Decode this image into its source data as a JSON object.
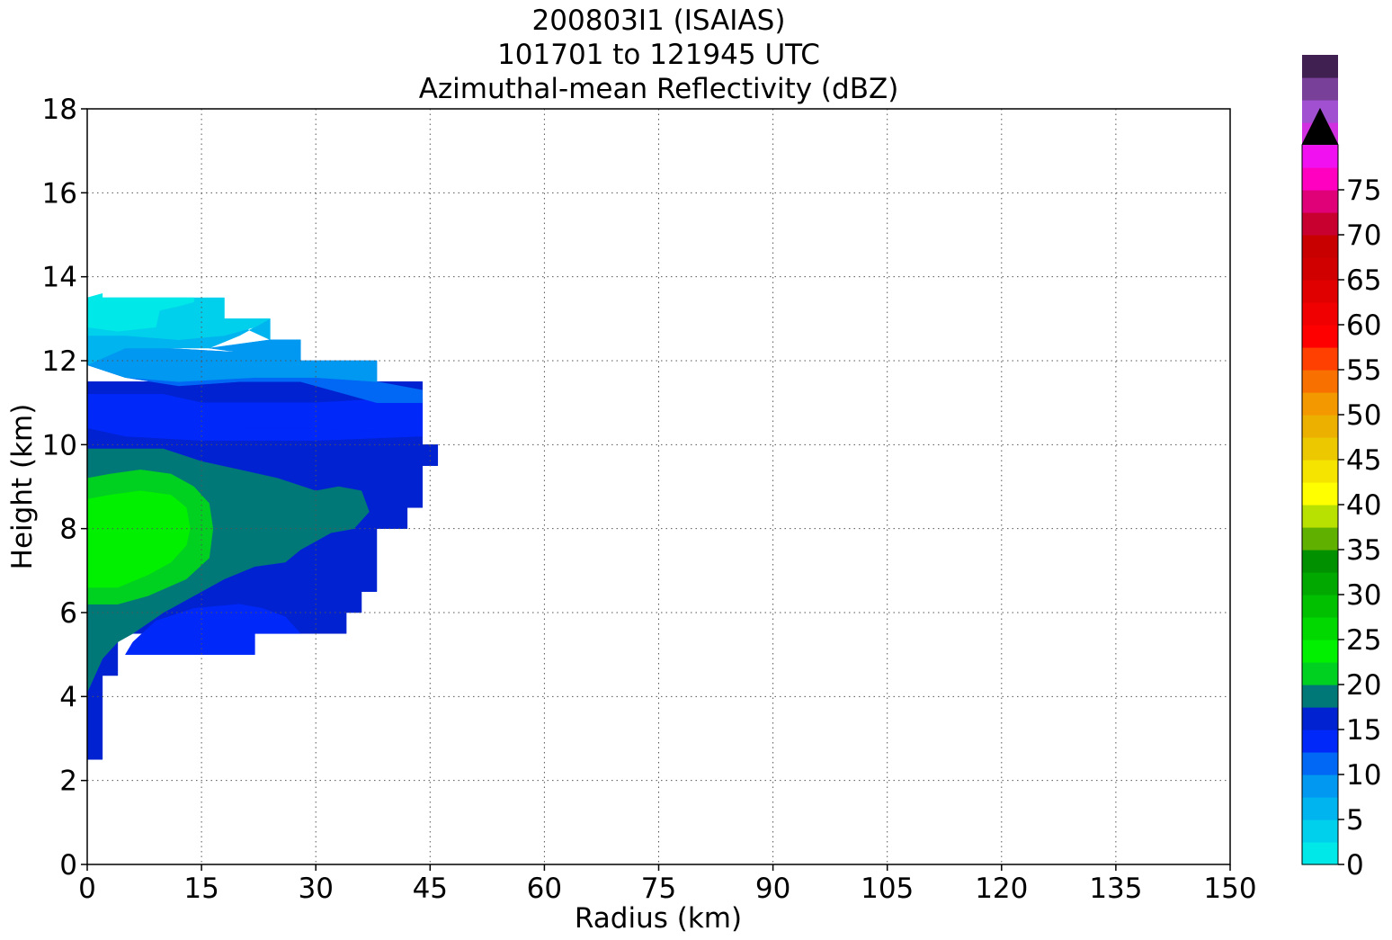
{
  "chart_data": {
    "type": "heatmap",
    "title_lines": [
      "200803I1 (ISAIAS)",
      "101701 to 121945 UTC",
      "Azimuthal-mean Reflectivity (dBZ)"
    ],
    "xlabel": "Radius (km)",
    "ylabel": "Height (km)",
    "xlim": [
      0,
      150
    ],
    "ylim": [
      0,
      18
    ],
    "xticks": [
      0,
      15,
      30,
      45,
      60,
      75,
      90,
      105,
      120,
      135,
      150
    ],
    "yticks": [
      0,
      2,
      4,
      6,
      8,
      10,
      12,
      14,
      16,
      18
    ],
    "grid": true,
    "colorbar": {
      "min": 0,
      "max": 80,
      "step": 2.5,
      "extend": "max",
      "ticks": [
        0,
        5,
        10,
        15,
        20,
        25,
        30,
        35,
        40,
        45,
        50,
        55,
        60,
        65,
        70,
        75
      ],
      "colors": [
        "#00e8e8",
        "#00d0ec",
        "#00b4f0",
        "#0098f0",
        "#0068f4",
        "#0028f8",
        "#0022d0",
        "#007878",
        "#00d020",
        "#00f000",
        "#00d800",
        "#00c000",
        "#00a800",
        "#009000",
        "#60b000",
        "#b8e000",
        "#ffff00",
        "#f4e400",
        "#ecc800",
        "#ecb000",
        "#f49800",
        "#f87000",
        "#ff4000",
        "#ff0000",
        "#f00000",
        "#e00000",
        "#d00000",
        "#c80000",
        "#c80030",
        "#e00078",
        "#ff00c0",
        "#f010f0",
        "#d030e0",
        "#a050d0",
        "#784098",
        "#402050"
      ],
      "over_color": "#000000"
    },
    "contour_regions": [
      {
        "level": 15,
        "color": "#0022d0",
        "polygon": [
          [
            0,
            2.5
          ],
          [
            2,
            2.5
          ],
          [
            2,
            4.5
          ],
          [
            4,
            4.5
          ],
          [
            4,
            5.5
          ],
          [
            34,
            5.5
          ],
          [
            34,
            6
          ],
          [
            36,
            6
          ],
          [
            36,
            6.5
          ],
          [
            38,
            6.5
          ],
          [
            38,
            8
          ],
          [
            42,
            8
          ],
          [
            42,
            8.5
          ],
          [
            44,
            8.5
          ],
          [
            44,
            9.5
          ],
          [
            46,
            9.5
          ],
          [
            46,
            10
          ],
          [
            44,
            10
          ],
          [
            44,
            11.5
          ],
          [
            0,
            11.5
          ]
        ]
      },
      {
        "level": 12.5,
        "color": "#0028f8",
        "polygon": [
          [
            6,
            5.3
          ],
          [
            9,
            5.8
          ],
          [
            14,
            6.1
          ],
          [
            20,
            6.2
          ],
          [
            23,
            6.1
          ],
          [
            26,
            5.9
          ],
          [
            28,
            5.5
          ],
          [
            22,
            5.5
          ],
          [
            22,
            5
          ],
          [
            5,
            5
          ]
        ]
      },
      {
        "level": 12.5,
        "color": "#0028f8",
        "polygon": [
          [
            0,
            11.2
          ],
          [
            10,
            11.2
          ],
          [
            15,
            11
          ],
          [
            30,
            11
          ],
          [
            40,
            11.1
          ],
          [
            44,
            11.1
          ],
          [
            44,
            10.6
          ],
          [
            38,
            10.3
          ],
          [
            30,
            10.4
          ],
          [
            20,
            10.4
          ],
          [
            12,
            10.6
          ],
          [
            5,
            10.7
          ],
          [
            0,
            10.9
          ]
        ]
      },
      {
        "level": 17.5,
        "color": "#007878",
        "polygon": [
          [
            0,
            4.1
          ],
          [
            2,
            4.9
          ],
          [
            4,
            5.3
          ],
          [
            6,
            5.5
          ],
          [
            10,
            6
          ],
          [
            15,
            6.5
          ],
          [
            18,
            6.8
          ],
          [
            22,
            7.1
          ],
          [
            26,
            7.2
          ],
          [
            28,
            7.5
          ],
          [
            30,
            7.7
          ],
          [
            32,
            7.9
          ],
          [
            35,
            8
          ],
          [
            37,
            8.4
          ],
          [
            36,
            8.9
          ],
          [
            33,
            9
          ],
          [
            30,
            8.9
          ],
          [
            25,
            9.2
          ],
          [
            20,
            9.4
          ],
          [
            15,
            9.6
          ],
          [
            10,
            9.9
          ],
          [
            0,
            9.9
          ]
        ]
      },
      {
        "level": 20,
        "color": "#00d020",
        "polygon": [
          [
            0,
            6.2
          ],
          [
            4,
            6.2
          ],
          [
            8,
            6.4
          ],
          [
            13,
            6.8
          ],
          [
            16,
            7.3
          ],
          [
            16.5,
            8
          ],
          [
            16,
            8.6
          ],
          [
            14,
            9
          ],
          [
            11,
            9.3
          ],
          [
            7,
            9.4
          ],
          [
            3,
            9.3
          ],
          [
            0,
            9.2
          ]
        ]
      },
      {
        "level": 22.5,
        "color": "#00f000",
        "polygon": [
          [
            0,
            6.6
          ],
          [
            4,
            6.6
          ],
          [
            8,
            6.9
          ],
          [
            11,
            7.2
          ],
          [
            13,
            7.6
          ],
          [
            13.5,
            8
          ],
          [
            13,
            8.5
          ],
          [
            11,
            8.8
          ],
          [
            7,
            8.9
          ],
          [
            3,
            8.8
          ],
          [
            0,
            8.7
          ]
        ]
      },
      {
        "level": 10,
        "color": "#0068f4",
        "polygon": [
          [
            0,
            11.9
          ],
          [
            5,
            11.6
          ],
          [
            12,
            11.4
          ],
          [
            20,
            11.5
          ],
          [
            28,
            11.5
          ],
          [
            34,
            11.2
          ],
          [
            38,
            11
          ],
          [
            44,
            11
          ],
          [
            44,
            11.3
          ],
          [
            38,
            11.5
          ],
          [
            38,
            12
          ],
          [
            28,
            12
          ],
          [
            20,
            12.2
          ],
          [
            10,
            12.3
          ],
          [
            0,
            12.3
          ]
        ]
      },
      {
        "level": 7.5,
        "color": "#0098f0",
        "polygon": [
          [
            0,
            12.3
          ],
          [
            10,
            12.3
          ],
          [
            20,
            12.2
          ],
          [
            28,
            12
          ],
          [
            38,
            12
          ],
          [
            38,
            11.5
          ],
          [
            30,
            11.6
          ],
          [
            22,
            11.6
          ],
          [
            12,
            11.5
          ],
          [
            5,
            11.6
          ],
          [
            0,
            11.9
          ]
        ]
      },
      {
        "level": 7.5,
        "color": "#0098f0",
        "polygon": [
          [
            24,
            12.5
          ],
          [
            28,
            12.5
          ],
          [
            28,
            12
          ],
          [
            20,
            12.2
          ],
          [
            16,
            12.3
          ]
        ]
      },
      {
        "level": 5,
        "color": "#00b4f0",
        "polygon": [
          [
            0,
            11.9
          ],
          [
            5,
            12.3
          ],
          [
            10,
            12.3
          ],
          [
            16,
            12.3
          ],
          [
            20,
            12.6
          ],
          [
            24,
            13
          ],
          [
            24,
            12.5
          ],
          [
            18,
            13
          ],
          [
            12,
            12.9
          ],
          [
            5,
            12.9
          ],
          [
            0,
            12.7
          ]
        ]
      },
      {
        "level": 2.5,
        "color": "#00d0ec",
        "polygon": [
          [
            0,
            13.3
          ],
          [
            2,
            13.4
          ],
          [
            2,
            13.5
          ],
          [
            18,
            13.5
          ],
          [
            18,
            13
          ],
          [
            24,
            13
          ],
          [
            22,
            12.8
          ],
          [
            18,
            12.6
          ],
          [
            12,
            12.5
          ],
          [
            5,
            12.6
          ],
          [
            0,
            12.6
          ]
        ]
      },
      {
        "level": 0,
        "color": "#00e8e8",
        "polygon": [
          [
            0,
            12.8
          ],
          [
            4,
            12.7
          ],
          [
            9,
            12.8
          ],
          [
            9.5,
            13.2
          ],
          [
            12,
            13.3
          ],
          [
            14,
            13.4
          ],
          [
            14,
            13.5
          ],
          [
            2,
            13.5
          ],
          [
            2,
            13.6
          ],
          [
            0,
            13.5
          ]
        ]
      },
      {
        "level": 12.5,
        "color": "#0028f8",
        "polygon": [
          [
            0,
            10.9
          ],
          [
            5,
            10.7
          ],
          [
            12,
            10.6
          ],
          [
            20,
            10.4
          ],
          [
            30,
            10.4
          ],
          [
            38,
            10.3
          ],
          [
            44,
            10.6
          ],
          [
            44,
            10.2
          ],
          [
            30,
            10.1
          ],
          [
            15,
            10.1
          ],
          [
            5,
            10.2
          ],
          [
            0,
            10.4
          ]
        ]
      }
    ]
  }
}
